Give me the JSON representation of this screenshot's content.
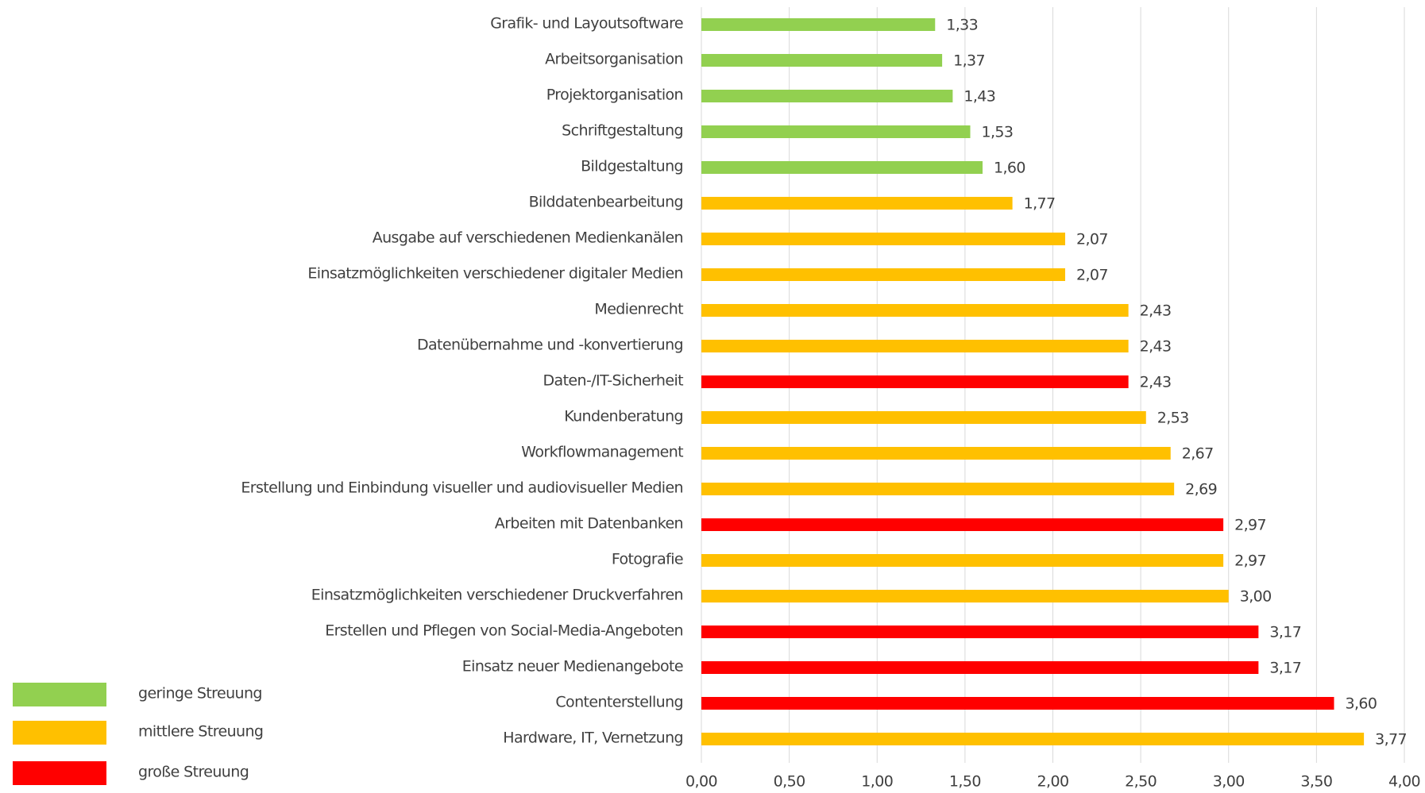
{
  "chart_data": {
    "type": "barh",
    "categories": [
      "Grafik- und Layoutsoftware",
      "Arbeitsorganisation",
      "Projektorganisation",
      "Schriftgestaltung",
      "Bildgestaltung",
      "Bilddatenbearbeitung",
      "Ausgabe auf verschiedenen Medienkanälen",
      "Einsatzmöglichkeiten verschiedener digitaler Medien",
      "Medienrecht",
      "Datenübernahme und -konvertierung",
      "Daten-/IT-Sicherheit",
      "Kundenberatung",
      "Workflowmanagement",
      "Erstellung und Einbindung visueller und audiovisueller Medien",
      "Arbeiten mit Datenbanken",
      "Fotografie",
      "Einsatzmöglichkeiten verschiedener Druckverfahren",
      "Erstellen und Pflegen von Social-Media-Angeboten",
      "Einsatz neuer Medienangebote",
      "Contenterstellung",
      "Hardware, IT, Vernetzung"
    ],
    "values": [
      1.33,
      1.37,
      1.43,
      1.53,
      1.6,
      1.77,
      2.07,
      2.07,
      2.43,
      2.43,
      2.43,
      2.53,
      2.67,
      2.69,
      2.97,
      2.97,
      3.0,
      3.17,
      3.17,
      3.6,
      3.77
    ],
    "value_labels": [
      "1,33",
      "1,37",
      "1,43",
      "1,53",
      "1,60",
      "1,77",
      "2,07",
      "2,07",
      "2,43",
      "2,43",
      "2,43",
      "2,53",
      "2,67",
      "2,69",
      "2,97",
      "2,97",
      "3,00",
      "3,17",
      "3,17",
      "3,60",
      "3,77"
    ],
    "colors": [
      "#92d050",
      "#92d050",
      "#92d050",
      "#92d050",
      "#92d050",
      "#ffc000",
      "#ffc000",
      "#ffc000",
      "#ffc000",
      "#ffc000",
      "#ff0000",
      "#ffc000",
      "#ffc000",
      "#ffc000",
      "#ff0000",
      "#ffc000",
      "#ffc000",
      "#ff0000",
      "#ff0000",
      "#ff0000",
      "#ffc000"
    ],
    "legend": [
      {
        "name": "geringe Streuung",
        "color": "#92d050"
      },
      {
        "name": "mittlere Streuung",
        "color": "#ffc000"
      },
      {
        "name": "große Streuung",
        "color": "#ff0000"
      }
    ],
    "xlim": [
      0,
      4
    ],
    "xticks": [
      {
        "value": 0,
        "label": "0,00"
      },
      {
        "value": 0.5,
        "label": "0,50"
      },
      {
        "value": 1,
        "label": "1,00"
      },
      {
        "value": 1.5,
        "label": "1,50"
      },
      {
        "value": 2,
        "label": "2,00"
      },
      {
        "value": 2.5,
        "label": "2,50"
      },
      {
        "value": 3,
        "label": "3,00"
      },
      {
        "value": 3.5,
        "label": "3,50"
      },
      {
        "value": 4,
        "label": "4,00"
      }
    ],
    "grid": true
  }
}
